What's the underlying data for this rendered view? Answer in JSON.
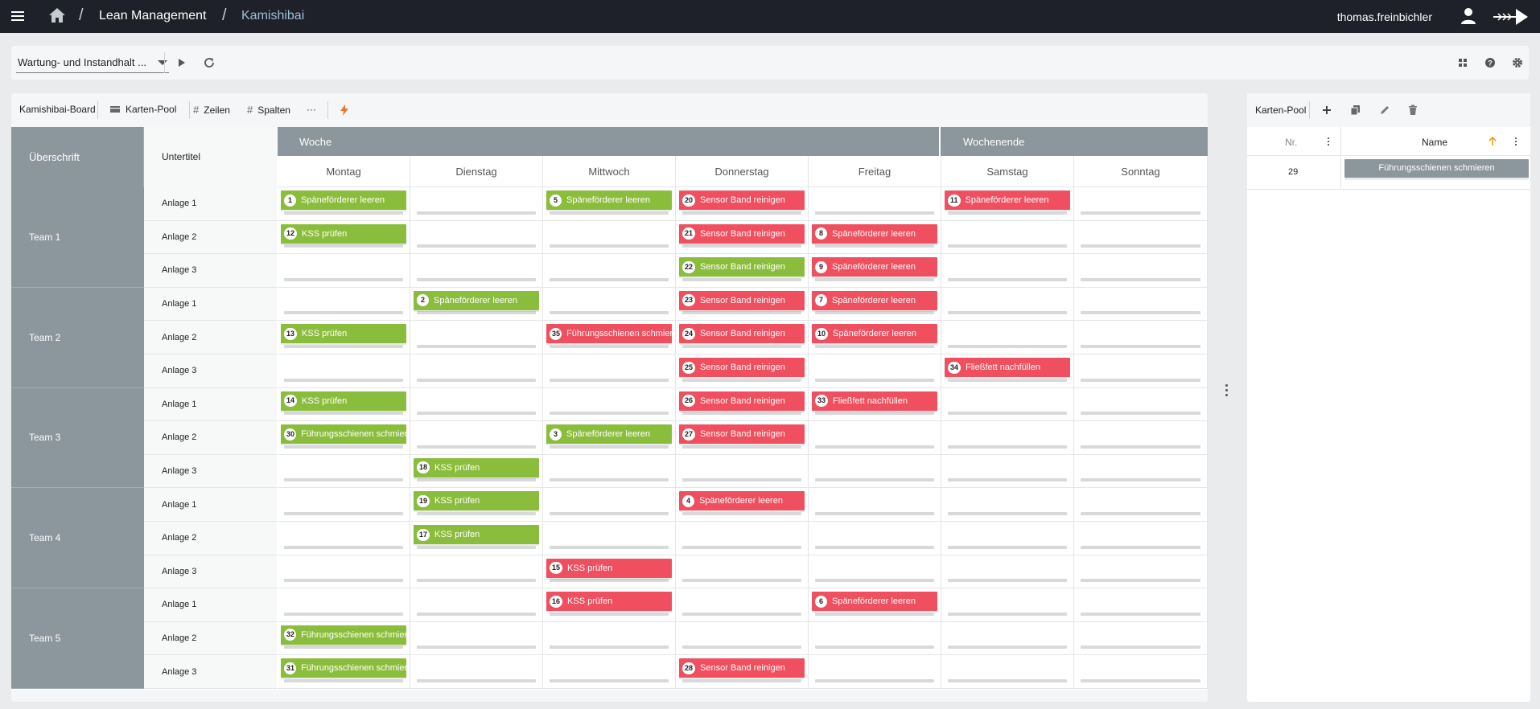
{
  "topbar": {
    "breadcrumb": [
      "Lean Management",
      "Kamishibai"
    ],
    "user": "thomas.freinbichler"
  },
  "toolbar": {
    "select_value": "Wartung- und Instandhalt ..."
  },
  "board_tools": {
    "items": [
      "Kamishibai-Board",
      "Karten-Pool",
      "Zeilen",
      "Spalten",
      "···"
    ]
  },
  "board": {
    "header_ueberschrift": "Überschrift",
    "header_untertitel": "Untertitel",
    "group_week": "Woche",
    "group_weekend": "Wochenende",
    "days": [
      "Montag",
      "Dienstag",
      "Mittwoch",
      "Donnerstag",
      "Freitag",
      "Samstag",
      "Sonntag"
    ],
    "teams": [
      {
        "name": "Team 1",
        "rows": [
          {
            "label": "Anlage 1",
            "cells": [
              {
                "n": "1",
                "t": "Späneförderer leeren",
                "c": "green"
              },
              null,
              {
                "n": "5",
                "t": "Späneförderer leeren",
                "c": "green"
              },
              {
                "n": "20",
                "t": "Sensor Band reinigen",
                "c": "red"
              },
              null,
              {
                "n": "11",
                "t": "Späneförderer leeren",
                "c": "red"
              },
              null
            ]
          },
          {
            "label": "Anlage 2",
            "cells": [
              {
                "n": "12",
                "t": "KSS prüfen",
                "c": "green"
              },
              null,
              null,
              {
                "n": "21",
                "t": "Sensor Band reinigen",
                "c": "red"
              },
              {
                "n": "8",
                "t": "Späneförderer leeren",
                "c": "red"
              },
              null,
              null
            ]
          },
          {
            "label": "Anlage 3",
            "cells": [
              null,
              null,
              null,
              {
                "n": "22",
                "t": "Sensor Band reinigen",
                "c": "green"
              },
              {
                "n": "9",
                "t": "Späneförderer leeren",
                "c": "red"
              },
              null,
              null
            ]
          }
        ]
      },
      {
        "name": "Team 2",
        "rows": [
          {
            "label": "Anlage 1",
            "cells": [
              null,
              {
                "n": "2",
                "t": "Späneförderer leeren",
                "c": "green"
              },
              null,
              {
                "n": "23",
                "t": "Sensor Band reinigen",
                "c": "red"
              },
              {
                "n": "7",
                "t": "Späneförderer leeren",
                "c": "red"
              },
              null,
              null
            ]
          },
          {
            "label": "Anlage 2",
            "cells": [
              {
                "n": "13",
                "t": "KSS prüfen",
                "c": "green"
              },
              null,
              {
                "n": "35",
                "t": "Führungsschienen schmieren",
                "c": "red"
              },
              {
                "n": "24",
                "t": "Sensor Band reinigen",
                "c": "red"
              },
              {
                "n": "10",
                "t": "Späneförderer leeren",
                "c": "red"
              },
              null,
              null
            ]
          },
          {
            "label": "Anlage 3",
            "cells": [
              null,
              null,
              null,
              {
                "n": "25",
                "t": "Sensor Band reinigen",
                "c": "red"
              },
              null,
              {
                "n": "34",
                "t": "Fließfett nachfüllen",
                "c": "red"
              },
              null
            ]
          }
        ]
      },
      {
        "name": "Team 3",
        "rows": [
          {
            "label": "Anlage 1",
            "cells": [
              {
                "n": "14",
                "t": "KSS prüfen",
                "c": "green"
              },
              null,
              null,
              {
                "n": "26",
                "t": "Sensor Band reinigen",
                "c": "red"
              },
              {
                "n": "33",
                "t": "Fließfett nachfüllen",
                "c": "red"
              },
              null,
              null
            ]
          },
          {
            "label": "Anlage 2",
            "cells": [
              {
                "n": "30",
                "t": "Führungsschienen schmieren",
                "c": "green"
              },
              null,
              {
                "n": "3",
                "t": "Späneförderer leeren",
                "c": "green"
              },
              {
                "n": "27",
                "t": "Sensor Band reinigen",
                "c": "red"
              },
              null,
              null,
              null
            ]
          },
          {
            "label": "Anlage 3",
            "cells": [
              null,
              {
                "n": "18",
                "t": "KSS prüfen",
                "c": "green"
              },
              null,
              null,
              null,
              null,
              null
            ]
          }
        ]
      },
      {
        "name": "Team 4",
        "rows": [
          {
            "label": "Anlage 1",
            "cells": [
              null,
              {
                "n": "19",
                "t": "KSS prüfen",
                "c": "green"
              },
              null,
              {
                "n": "4",
                "t": "Späneförderer leeren",
                "c": "red"
              },
              null,
              null,
              null
            ]
          },
          {
            "label": "Anlage 2",
            "cells": [
              null,
              {
                "n": "17",
                "t": "KSS prüfen",
                "c": "green"
              },
              null,
              null,
              null,
              null,
              null
            ]
          },
          {
            "label": "Anlage 3",
            "cells": [
              null,
              null,
              {
                "n": "15",
                "t": "KSS prüfen",
                "c": "red"
              },
              null,
              null,
              null,
              null
            ]
          }
        ]
      },
      {
        "name": "Team 5",
        "rows": [
          {
            "label": "Anlage 1",
            "cells": [
              null,
              null,
              {
                "n": "16",
                "t": "KSS prüfen",
                "c": "red"
              },
              null,
              {
                "n": "6",
                "t": "Späneförderer leeren",
                "c": "red"
              },
              null,
              null
            ]
          },
          {
            "label": "Anlage 2",
            "cells": [
              {
                "n": "32",
                "t": "Führungsschienen schmieren",
                "c": "green"
              },
              null,
              null,
              null,
              null,
              null,
              null
            ]
          },
          {
            "label": "Anlage 3",
            "cells": [
              {
                "n": "31",
                "t": "Führungsschienen schmieren",
                "c": "green"
              },
              null,
              null,
              {
                "n": "28",
                "t": "Sensor Band reinigen",
                "c": "red"
              },
              null,
              null,
              null
            ]
          }
        ]
      }
    ]
  },
  "pool": {
    "title": "Karten-Pool",
    "col_nr": "Nr.",
    "col_name": "Name",
    "rows": [
      {
        "nr": "29",
        "name": "Führungsschienen schmieren"
      }
    ]
  },
  "colors": {
    "topbar": "#1e2129",
    "green": "#8bbd3c",
    "red": "#ef4f5e",
    "header": "#8c969d",
    "accent": "#e8782b"
  }
}
